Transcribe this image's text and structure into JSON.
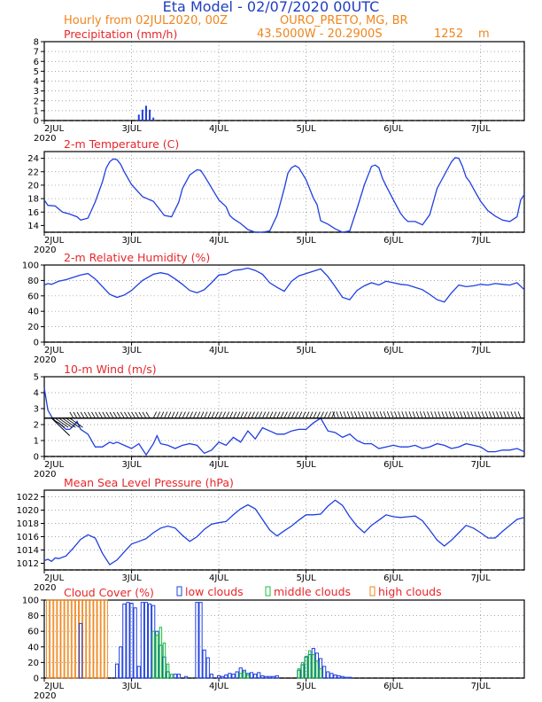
{
  "header": {
    "title": "Eta Model - 02/07/2020 00UTC",
    "subtitle": "Hourly from 02JUL2020, 00Z",
    "station": "OURO_PRETO, MG, BR",
    "coords": "43.5000W - 20.2900S",
    "elevation": "1252",
    "elevation_unit": "m"
  },
  "colors": {
    "title": "#1f3fbf",
    "header": "#f0851a",
    "panel_title": "#e8262a",
    "series": "#1f3fe0",
    "low_clouds": "#1f3fe0",
    "middle_clouds": "#18c038",
    "high_clouds": "#f0851a",
    "wind_barb": "#000000"
  },
  "x_axis": {
    "labels": [
      "2JUL",
      "3JUL",
      "4JUL",
      "5JUL",
      "6JUL",
      "7JUL"
    ],
    "year_label": "2020",
    "range_hours": [
      0,
      132
    ]
  },
  "chart_data": [
    {
      "id": "precip",
      "type": "bar",
      "title": "Precipitation (mm/h)",
      "ylim": [
        0,
        8
      ],
      "yticks": [
        "0",
        "1",
        "2",
        "3",
        "4",
        "5",
        "6",
        "7",
        "8"
      ],
      "x_hours": [
        26,
        27,
        28,
        29,
        30,
        72
      ],
      "values": [
        0.6,
        1.1,
        1.5,
        1.1,
        0.3,
        0.05
      ]
    },
    {
      "id": "temp",
      "type": "line",
      "title": "2-m Temperature (C)",
      "ylim": [
        13,
        25
      ],
      "yticks": [
        "14",
        "16",
        "18",
        "20",
        "22",
        "24"
      ],
      "x_hours": [
        0,
        1,
        3,
        5,
        7,
        9,
        10,
        12,
        14,
        16,
        17,
        18,
        19,
        20,
        21,
        22,
        24,
        27,
        30,
        31,
        33,
        35,
        37,
        38,
        40,
        42,
        43,
        44,
        45,
        46,
        48,
        50,
        51,
        52,
        54,
        56,
        58,
        60,
        62,
        64,
        65,
        66,
        67,
        68,
        69,
        70,
        72,
        74,
        75,
        76,
        78,
        80,
        82,
        84,
        86,
        88,
        89,
        90,
        91,
        92,
        93,
        94,
        96,
        98,
        99,
        100,
        102,
        104,
        106,
        108,
        110,
        112,
        113,
        114,
        115,
        116,
        117,
        118,
        120,
        122,
        124,
        126,
        128,
        130,
        131,
        132
      ],
      "values": [
        17.8,
        17,
        16.9,
        16,
        15.7,
        15.3,
        14.8,
        15.1,
        17.5,
        20.5,
        22.5,
        23.5,
        23.9,
        23.8,
        23.1,
        22,
        20.1,
        18.3,
        17.6,
        16.9,
        15.5,
        15.3,
        17.5,
        19.5,
        21.5,
        22.3,
        22.2,
        21.4,
        20.5,
        19.6,
        17.8,
        16.8,
        15.5,
        15,
        14.3,
        13.4,
        13,
        13,
        13.2,
        15.5,
        17.5,
        19.5,
        21.8,
        22.6,
        22.9,
        22.6,
        20.8,
        18.1,
        17.1,
        14.7,
        14.2,
        13.5,
        12.8,
        13.2,
        16.5,
        20,
        21.4,
        22.8,
        23,
        22.6,
        21,
        19.9,
        17.8,
        15.8,
        15.1,
        14.6,
        14.6,
        14.1,
        15.6,
        19.5,
        21.5,
        23.5,
        24.1,
        24,
        22.8,
        21.2,
        20.5,
        19.5,
        17.6,
        16.2,
        15.4,
        14.8,
        14.6,
        15.3,
        17.8,
        18.6
      ]
    },
    {
      "id": "rh",
      "type": "line",
      "title": "2-m Relative Humidity (%)",
      "ylim": [
        0,
        100
      ],
      "yticks": [
        "0",
        "20",
        "40",
        "60",
        "80",
        "100"
      ],
      "x_hours": [
        0,
        1,
        2,
        4,
        6,
        8,
        10,
        12,
        14,
        16,
        18,
        20,
        22,
        24,
        27,
        30,
        32,
        34,
        36,
        38,
        40,
        42,
        44,
        46,
        48,
        50,
        52,
        54,
        56,
        58,
        60,
        62,
        64,
        66,
        68,
        70,
        72,
        74,
        76,
        78,
        80,
        82,
        84,
        86,
        88,
        90,
        92,
        94,
        96,
        98,
        100,
        102,
        104,
        106,
        108,
        110,
        112,
        114,
        116,
        118,
        120,
        122,
        124,
        126,
        128,
        130,
        132
      ],
      "values": [
        74,
        76,
        75,
        79,
        81,
        84,
        87,
        89,
        82,
        72,
        62,
        58,
        61,
        67,
        80,
        88,
        90,
        88,
        82,
        75,
        67,
        64,
        68,
        77,
        87,
        88,
        93,
        94,
        96,
        93,
        88,
        77,
        71,
        66,
        79,
        86,
        89,
        92,
        95,
        85,
        72,
        58,
        55,
        67,
        73,
        77,
        74,
        79,
        77,
        75,
        74,
        71,
        68,
        62,
        55,
        52,
        64,
        74,
        72,
        73,
        75,
        74,
        76,
        75,
        74,
        77,
        68
      ]
    },
    {
      "id": "wind",
      "type": "line",
      "title": "10-m Wind (m/s)",
      "ylim": [
        0,
        5
      ],
      "yticks": [
        "0",
        "1",
        "2",
        "3",
        "4",
        "5"
      ],
      "barb_note": "wind barbs along y=2.4",
      "x_hours": [
        0,
        1,
        2,
        3,
        4,
        5,
        6,
        7,
        8,
        9,
        10,
        12,
        14,
        16,
        18,
        19,
        20,
        22,
        24,
        26,
        28,
        30,
        31,
        32,
        34,
        36,
        38,
        40,
        42,
        44,
        46,
        48,
        50,
        52,
        54,
        56,
        58,
        60,
        62,
        64,
        66,
        68,
        70,
        72,
        74,
        76,
        78,
        80,
        82,
        84,
        86,
        88,
        90,
        92,
        94,
        96,
        98,
        100,
        102,
        104,
        106,
        108,
        110,
        112,
        114,
        116,
        118,
        120,
        122,
        124,
        126,
        128,
        130,
        132
      ],
      "values": [
        4.3,
        2.9,
        2.5,
        2.2,
        2.1,
        1.9,
        1.7,
        1.7,
        1.9,
        2.2,
        1.7,
        1.4,
        0.6,
        0.6,
        0.9,
        0.8,
        0.9,
        0.7,
        0.5,
        0.8,
        0.1,
        0.8,
        1.3,
        0.8,
        0.7,
        0.5,
        0.7,
        0.8,
        0.7,
        0.2,
        0.4,
        0.9,
        0.7,
        1.2,
        0.9,
        1.6,
        1.1,
        1.8,
        1.6,
        1.4,
        1.4,
        1.6,
        1.7,
        1.7,
        2.1,
        2.4,
        1.6,
        1.5,
        1.2,
        1.4,
        1.0,
        0.8,
        0.8,
        0.5,
        0.6,
        0.7,
        0.6,
        0.6,
        0.7,
        0.5,
        0.6,
        0.8,
        0.7,
        0.5,
        0.6,
        0.8,
        0.7,
        0.6,
        0.3,
        0.3,
        0.4,
        0.4,
        0.5,
        0.3
      ]
    },
    {
      "id": "mslp",
      "type": "line",
      "title": "Mean Sea Level Pressure (hPa)",
      "ylim": [
        1011,
        1023
      ],
      "yticks": [
        "1012",
        "1014",
        "1016",
        "1018",
        "1020",
        "1022"
      ],
      "x_hours": [
        0,
        1,
        2,
        3,
        4,
        6,
        8,
        10,
        12,
        14,
        16,
        18,
        20,
        22,
        24,
        26,
        28,
        30,
        32,
        34,
        36,
        38,
        40,
        42,
        44,
        46,
        48,
        50,
        52,
        54,
        56,
        58,
        60,
        62,
        64,
        66,
        68,
        70,
        72,
        74,
        76,
        78,
        80,
        82,
        84,
        86,
        88,
        90,
        92,
        94,
        96,
        98,
        100,
        102,
        104,
        106,
        108,
        110,
        112,
        114,
        116,
        118,
        120,
        122,
        124,
        126,
        128,
        130,
        132
      ],
      "values": [
        1012.4,
        1012.6,
        1012.3,
        1012.8,
        1012.7,
        1013.1,
        1014.3,
        1015.6,
        1016.3,
        1015.8,
        1013.5,
        1011.8,
        1012.5,
        1013.7,
        1014.9,
        1015.3,
        1015.7,
        1016.6,
        1017.3,
        1017.6,
        1017.3,
        1016.2,
        1015.3,
        1016.0,
        1017.1,
        1017.9,
        1018.1,
        1018.3,
        1019.3,
        1020.2,
        1020.8,
        1020.2,
        1018.6,
        1017.0,
        1016.1,
        1016.9,
        1017.6,
        1018.5,
        1019.3,
        1019.3,
        1019.4,
        1020.6,
        1021.5,
        1020.7,
        1019.0,
        1017.6,
        1016.6,
        1017.7,
        1018.5,
        1019.3,
        1019.0,
        1018.9,
        1019.0,
        1019.1,
        1018.4,
        1017.0,
        1015.5,
        1014.6,
        1015.5,
        1016.6,
        1017.7,
        1017.3,
        1016.6,
        1015.8,
        1015.8,
        1016.8,
        1017.7,
        1018.6,
        1018.9
      ]
    },
    {
      "id": "cloud",
      "type": "bar",
      "title": "Cloud Cover (%)",
      "ylim": [
        0,
        100
      ],
      "yticks": [
        "0",
        "20",
        "40",
        "60",
        "80",
        "100"
      ],
      "legend": [
        "low clouds",
        "middle clouds",
        "high clouds"
      ],
      "high": {
        "x_hours": [
          1,
          2,
          3,
          4,
          5,
          6,
          7,
          8,
          9,
          10,
          11,
          12,
          13,
          14,
          15,
          16,
          17
        ],
        "values": [
          100,
          100,
          100,
          100,
          100,
          100,
          100,
          100,
          100,
          100,
          100,
          100,
          100,
          100,
          100,
          100,
          100
        ]
      },
      "low": {
        "x_hours": [
          10,
          20,
          21,
          22,
          23,
          24,
          25,
          26,
          27,
          28,
          29,
          30,
          31,
          32,
          33,
          34,
          35,
          36,
          37,
          38,
          39,
          40,
          41,
          42,
          43,
          44,
          45,
          46,
          47,
          48,
          49,
          50,
          51,
          52,
          53,
          54,
          55,
          56,
          57,
          58,
          59,
          60,
          61,
          62,
          63,
          64,
          70,
          71,
          72,
          73,
          74,
          75,
          76,
          77,
          78,
          79,
          80,
          81,
          82,
          83,
          84
        ],
        "values": [
          70,
          18,
          40,
          95,
          97,
          96,
          90,
          15,
          97,
          97,
          95,
          93,
          60,
          42,
          27,
          8,
          0,
          5,
          5,
          0,
          2,
          0,
          0,
          97,
          97,
          36,
          26,
          5,
          0,
          3,
          2,
          4,
          6,
          5,
          8,
          13,
          10,
          6,
          7,
          5,
          7,
          3,
          2,
          2,
          2,
          3,
          10,
          17,
          27,
          30,
          38,
          32,
          25,
          15,
          8,
          6,
          4,
          3,
          2,
          1,
          1
        ]
      },
      "middle": {
        "x_hours": [
          30,
          31,
          32,
          33,
          34,
          35,
          54,
          55,
          56,
          70,
          71,
          72,
          73,
          74,
          75,
          76
        ],
        "values": [
          60,
          55,
          65,
          45,
          18,
          5,
          6,
          8,
          4,
          12,
          20,
          28,
          35,
          30,
          22,
          12
        ]
      }
    }
  ]
}
